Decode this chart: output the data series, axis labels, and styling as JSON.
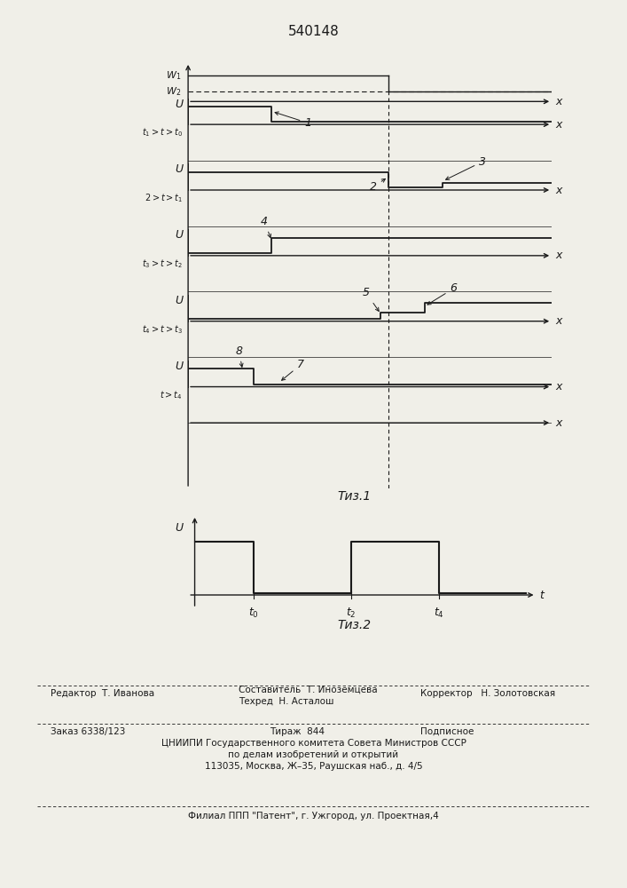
{
  "title": "540148",
  "fig1_caption": "Τиз.1",
  "fig2_caption": "Τиз.2",
  "bg_color": "#f0efe8",
  "line_color": "#1a1a1a",
  "footer_col1_line1": "Редактор  Т. Иванова",
  "footer_col2_line1": "Составитель  Т. Иноземцева",
  "footer_col2_line2": "Техред  Н. Асталош",
  "footer_col3": "Корректор   Н. Золотовская",
  "footer_zakaz": "Заказ 6338/123",
  "footer_tirazh": "Тираж  844",
  "footer_podp": "Подписное",
  "footer_cniip1": "ЦНИИПИ Государственного комитета Совета Министров СССР",
  "footer_cniip2": "по делам изобретений и открытий",
  "footer_cniip3": "113035, Москва, Ж–35, Раушская наб., д. 4/5",
  "footer_filial": "Филиал ППП \"Патент\", г. Ужгород, ул. Проектная,4"
}
